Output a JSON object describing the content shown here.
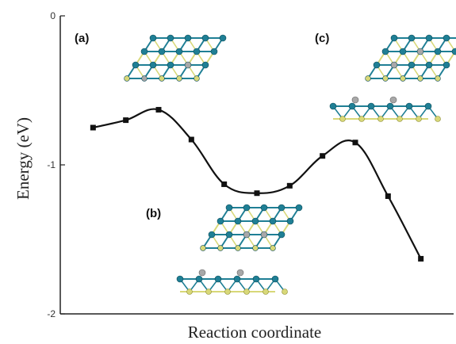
{
  "chart_data": {
    "type": "line",
    "title": "",
    "xlabel": "Reaction coordinate",
    "ylabel": "Energy (eV)",
    "ylim": [
      -2,
      0
    ],
    "y_ticks": [
      "0",
      "-1",
      "-2"
    ],
    "x_ticks": "none",
    "grid": false,
    "legend": "none",
    "series": [
      {
        "x": [
          1,
          2,
          3,
          4,
          5,
          6,
          7,
          8,
          9,
          10,
          11
        ],
        "y": [
          -0.75,
          -0.7,
          -0.63,
          -0.83,
          -1.13,
          -1.19,
          -1.14,
          -0.94,
          -0.85,
          -1.21,
          -1.63
        ]
      }
    ],
    "xlim": [
      0,
      12
    ],
    "line_color": "#111111",
    "marker": "square",
    "insets": [
      {
        "label": "(a)",
        "view": "top"
      },
      {
        "label": "(b)",
        "view": "top and side"
      },
      {
        "label": "(c)",
        "view": "top and side"
      }
    ]
  },
  "colors": {
    "teal_atom": "#1f7f95",
    "yellow_atom": "#d8d878",
    "gray_atom": "#a8a8a8"
  }
}
